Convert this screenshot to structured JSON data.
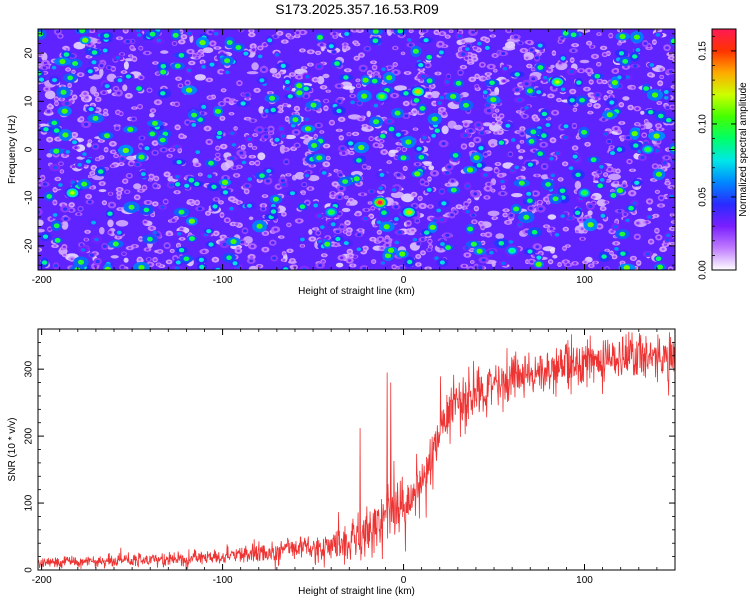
{
  "title": "S173.2025.357.16.53.R09",
  "colors": {
    "background": "#ffffff",
    "axis": "#000000",
    "snr_line": "#ee3333"
  },
  "chart_data": [
    {
      "type": "heatmap",
      "name": "spectrogram",
      "xlabel": "Height of straight line (km)",
      "ylabel": "Frequency (Hz)",
      "xlim": [
        -202,
        150
      ],
      "ylim": [
        -25,
        25
      ],
      "xticks": [
        -200,
        -100,
        0,
        100
      ],
      "yticks": [
        -20,
        -10,
        0,
        10,
        20
      ],
      "xtick_labels": [
        "-200",
        "-100",
        "0",
        "100"
      ],
      "ytick_labels": [
        "-20",
        "-10",
        "0",
        "10",
        "20"
      ],
      "colorbar": {
        "label": "Normalized spectral amplitude",
        "range": [
          0,
          0.165
        ],
        "ticks": [
          0.0,
          0.05,
          0.1,
          0.15
        ],
        "tick_labels": [
          "0.00",
          "0.05",
          "0.10",
          "0.15"
        ],
        "colormap": [
          "#ffffff",
          "#c07bff",
          "#7a1fff",
          "#2a2aff",
          "#0088ff",
          "#00e8e8",
          "#00ff66",
          "#44ff00",
          "#ccff00",
          "#ffaa00",
          "#ff3300",
          "#ff1a55"
        ]
      },
      "background_level": 0.015,
      "speckle_count": 1800,
      "notable_peaks": [
        {
          "x": -13,
          "y": -11,
          "value": 0.165
        },
        {
          "x": 3,
          "y": -13,
          "value": 0.13
        },
        {
          "x": 8,
          "y": 12,
          "value": 0.13
        },
        {
          "x": -12,
          "y": 11,
          "value": 0.11
        },
        {
          "x": -183,
          "y": -9,
          "value": 0.12
        },
        {
          "x": 85,
          "y": 14,
          "value": 0.12
        },
        {
          "x": 100,
          "y": -9,
          "value": 0.1
        },
        {
          "x": 135,
          "y": 0,
          "value": 0.1
        },
        {
          "x": 60,
          "y": -21,
          "value": 0.09
        },
        {
          "x": -40,
          "y": -13,
          "value": 0.1
        }
      ]
    },
    {
      "type": "line",
      "name": "snr",
      "xlabel": "Height of straight line (km)",
      "ylabel": "SNR (10 * v/v)",
      "xlim": [
        -202,
        150
      ],
      "ylim": [
        0,
        360
      ],
      "xticks": [
        -200,
        -100,
        0,
        100
      ],
      "yticks": [
        0,
        100,
        200,
        300
      ],
      "xtick_labels": [
        "-200",
        "-100",
        "0",
        "100"
      ],
      "ytick_labels": [
        "0",
        "100",
        "200",
        "300"
      ],
      "series": [
        {
          "name": "SNR",
          "trend": {
            "x": [
              -202,
              -180,
              -150,
              -120,
              -100,
              -80,
              -60,
              -40,
              -30,
              -20,
              -15,
              -10,
              -5,
              0,
              5,
              10,
              15,
              20,
              25,
              30,
              40,
              50,
              60,
              80,
              100,
              120,
              150
            ],
            "y": [
              12,
              13,
              15,
              17,
              20,
              25,
              30,
              38,
              45,
              58,
              70,
              82,
              92,
              100,
              110,
              130,
              160,
              200,
              232,
              250,
              265,
              275,
              285,
              300,
              310,
              318,
              325
            ]
          },
          "noise_amplitude": {
            "x": [
              -202,
              -100,
              -40,
              -20,
              0,
              20,
              60,
              150
            ],
            "y": [
              7,
              10,
              18,
              35,
              45,
              40,
              30,
              30
            ]
          },
          "spikes": [
            {
              "x": -9,
              "y": 295
            },
            {
              "x": -7,
              "y": 280
            },
            {
              "x": -24,
              "y": 212
            },
            {
              "x": 9,
              "y": 148
            }
          ]
        }
      ]
    }
  ]
}
